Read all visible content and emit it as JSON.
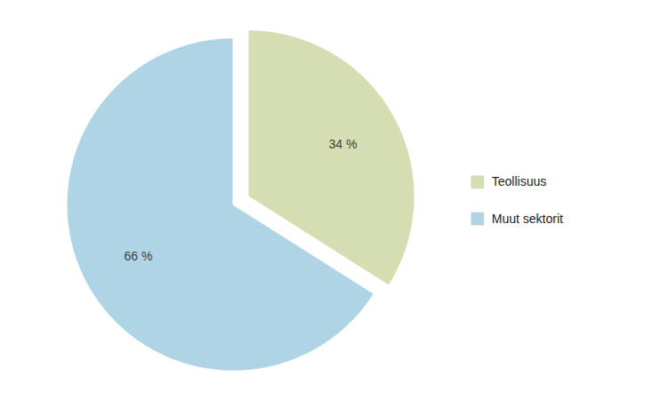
{
  "chart_data": {
    "type": "pie",
    "categories": [
      "Teollisuus",
      "Muut sektorit"
    ],
    "values": [
      34,
      66
    ],
    "value_labels": [
      "34 %",
      "66 %"
    ],
    "colors": [
      "#d5deb3",
      "#aed4e6"
    ],
    "data_labels": true,
    "legend": "right"
  }
}
